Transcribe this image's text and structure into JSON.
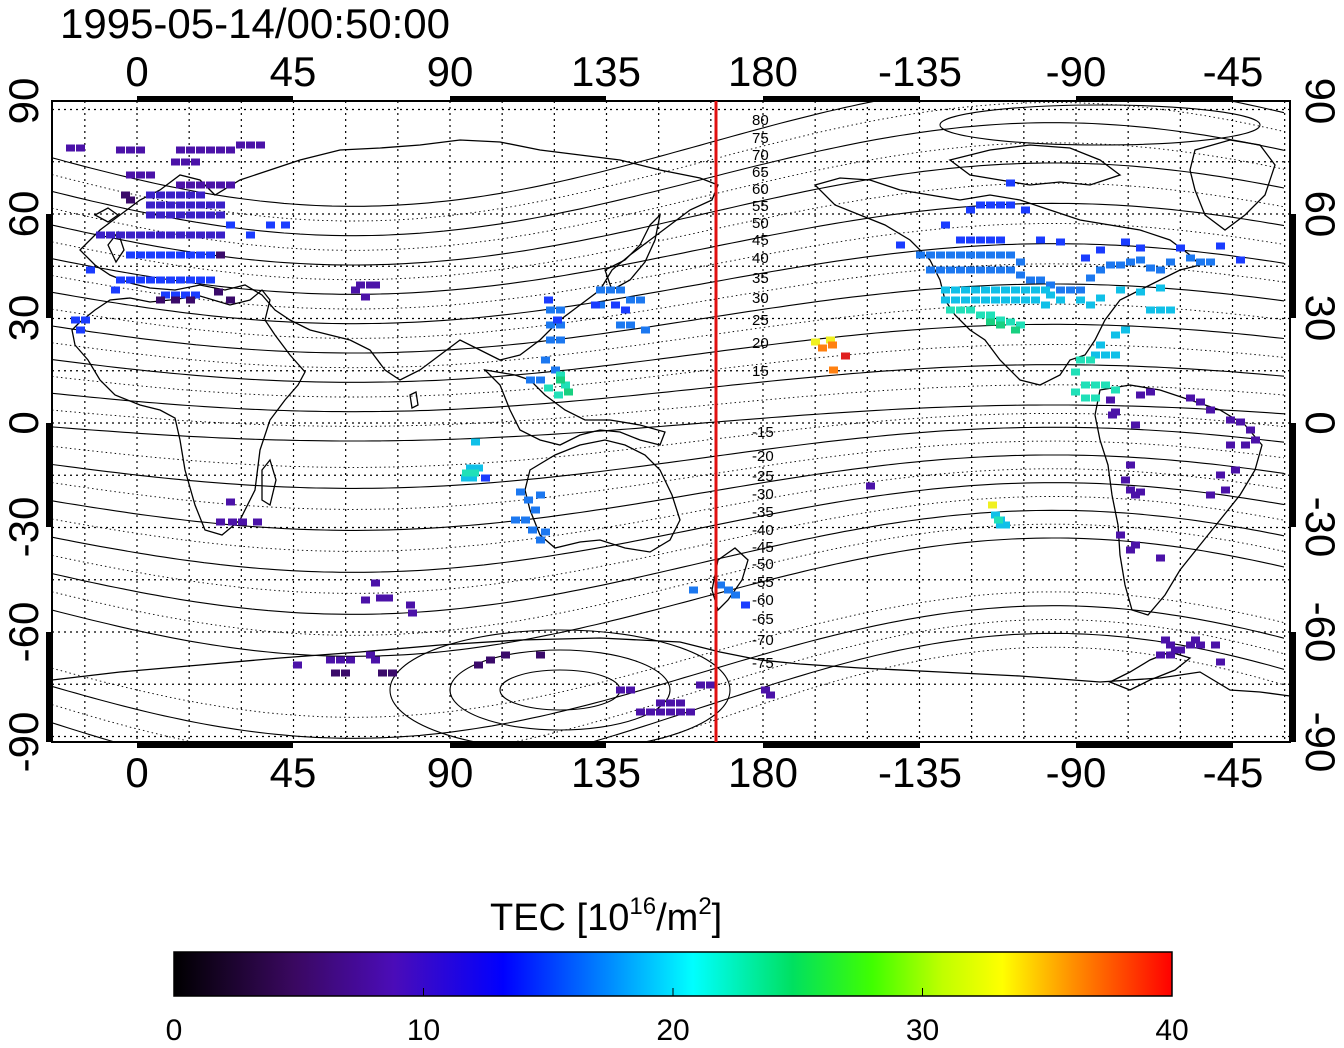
{
  "title": "1995-05-14/00:50:00",
  "map": {
    "x_ticks": [
      "0",
      "45",
      "90",
      "135",
      "180",
      "-135",
      "-90",
      "-45"
    ],
    "y_ticks": [
      "90",
      "60",
      "30",
      "0",
      "-30",
      "-60",
      "-90"
    ],
    "magnetic_latitude_labels": [
      "80",
      "75",
      "70",
      "65",
      "60",
      "55",
      "50",
      "45",
      "40",
      "35",
      "30",
      "25",
      "20",
      "15",
      "-15",
      "-20",
      "-25",
      "-30",
      "-35",
      "-40",
      "-45",
      "-50",
      "-55",
      "-60",
      "-65",
      "-70",
      "-75"
    ],
    "terminator_longitude": 168,
    "terminator_color": "#e01010"
  },
  "colorbar": {
    "title": "TEC  [10",
    "title_sup": "16",
    "title_mid": "/m",
    "title_sup2": "2",
    "title_end": "]",
    "ticks": [
      "0",
      "10",
      "20",
      "30",
      "40"
    ],
    "range": [
      0,
      40
    ]
  }
}
